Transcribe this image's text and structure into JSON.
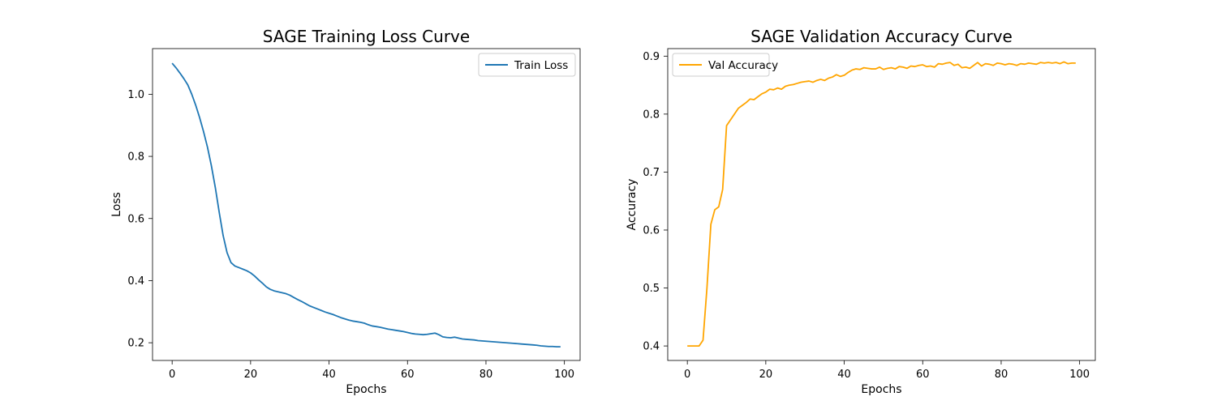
{
  "chart_data": [
    {
      "type": "line",
      "title": "SAGE Training Loss Curve",
      "xlabel": "Epochs",
      "ylabel": "Loss",
      "xlim": [
        -5,
        104
      ],
      "ylim": [
        0.143,
        1.147
      ],
      "xticks": [
        0,
        20,
        40,
        60,
        80,
        100
      ],
      "yticks": [
        0.2,
        0.4,
        0.6,
        0.8,
        1.0
      ],
      "xtick_labels": [
        "0",
        "20",
        "40",
        "60",
        "80",
        "100"
      ],
      "ytick_labels": [
        "0.2",
        "0.4",
        "0.6",
        "0.8",
        "1.0"
      ],
      "grid": false,
      "legend_position": "top-right",
      "series": [
        {
          "name": "Train Loss",
          "color": "#1f77b4",
          "x": [
            0,
            1,
            2,
            3,
            4,
            5,
            6,
            7,
            8,
            9,
            10,
            11,
            12,
            13,
            14,
            15,
            16,
            17,
            18,
            19,
            20,
            21,
            22,
            23,
            24,
            25,
            26,
            27,
            28,
            29,
            30,
            31,
            32,
            33,
            34,
            35,
            36,
            37,
            38,
            39,
            40,
            41,
            42,
            43,
            44,
            45,
            46,
            47,
            48,
            49,
            50,
            51,
            52,
            53,
            54,
            55,
            56,
            57,
            58,
            59,
            60,
            61,
            62,
            63,
            64,
            65,
            66,
            67,
            68,
            69,
            70,
            71,
            72,
            73,
            74,
            75,
            76,
            77,
            78,
            79,
            80,
            81,
            82,
            83,
            84,
            85,
            86,
            87,
            88,
            89,
            90,
            91,
            92,
            93,
            94,
            95,
            96,
            97,
            98,
            99
          ],
          "values": [
            1.1,
            1.085,
            1.068,
            1.05,
            1.03,
            1.0,
            0.965,
            0.925,
            0.88,
            0.83,
            0.77,
            0.7,
            0.62,
            0.545,
            0.49,
            0.458,
            0.447,
            0.442,
            0.437,
            0.432,
            0.425,
            0.415,
            0.403,
            0.392,
            0.38,
            0.372,
            0.367,
            0.364,
            0.361,
            0.358,
            0.353,
            0.346,
            0.339,
            0.333,
            0.326,
            0.319,
            0.314,
            0.309,
            0.304,
            0.299,
            0.295,
            0.291,
            0.286,
            0.281,
            0.277,
            0.273,
            0.27,
            0.268,
            0.266,
            0.263,
            0.258,
            0.254,
            0.252,
            0.25,
            0.247,
            0.244,
            0.242,
            0.24,
            0.238,
            0.236,
            0.233,
            0.23,
            0.228,
            0.227,
            0.226,
            0.227,
            0.229,
            0.231,
            0.226,
            0.219,
            0.217,
            0.216,
            0.218,
            0.215,
            0.212,
            0.211,
            0.21,
            0.209,
            0.207,
            0.206,
            0.205,
            0.204,
            0.203,
            0.202,
            0.201,
            0.2,
            0.199,
            0.198,
            0.197,
            0.196,
            0.195,
            0.194,
            0.193,
            0.192,
            0.19,
            0.189,
            0.188,
            0.188,
            0.187,
            0.187
          ]
        }
      ]
    },
    {
      "type": "line",
      "title": "SAGE Validation Accuracy Curve",
      "xlabel": "Epochs",
      "ylabel": "Accuracy",
      "xlim": [
        -5,
        104
      ],
      "ylim": [
        0.375,
        0.913
      ],
      "xticks": [
        0,
        20,
        40,
        60,
        80,
        100
      ],
      "yticks": [
        0.4,
        0.5,
        0.6,
        0.7,
        0.8,
        0.9
      ],
      "xtick_labels": [
        "0",
        "20",
        "40",
        "60",
        "80",
        "100"
      ],
      "ytick_labels": [
        "0.4",
        "0.5",
        "0.6",
        "0.7",
        "0.8",
        "0.9"
      ],
      "grid": false,
      "legend_position": "top-left",
      "series": [
        {
          "name": "Val Accuracy",
          "color": "#ffa500",
          "x": [
            0,
            1,
            2,
            3,
            4,
            5,
            6,
            7,
            8,
            9,
            10,
            11,
            12,
            13,
            14,
            15,
            16,
            17,
            18,
            19,
            20,
            21,
            22,
            23,
            24,
            25,
            26,
            27,
            28,
            29,
            30,
            31,
            32,
            33,
            34,
            35,
            36,
            37,
            38,
            39,
            40,
            41,
            42,
            43,
            44,
            45,
            46,
            47,
            48,
            49,
            50,
            51,
            52,
            53,
            54,
            55,
            56,
            57,
            58,
            59,
            60,
            61,
            62,
            63,
            64,
            65,
            66,
            67,
            68,
            69,
            70,
            71,
            72,
            73,
            74,
            75,
            76,
            77,
            78,
            79,
            80,
            81,
            82,
            83,
            84,
            85,
            86,
            87,
            88,
            89,
            90,
            91,
            92,
            93,
            94,
            95,
            96,
            97,
            98,
            99
          ],
          "values": [
            0.4,
            0.4,
            0.4,
            0.4,
            0.41,
            0.5,
            0.61,
            0.635,
            0.64,
            0.67,
            0.78,
            0.79,
            0.8,
            0.81,
            0.815,
            0.82,
            0.826,
            0.825,
            0.83,
            0.835,
            0.838,
            0.843,
            0.842,
            0.845,
            0.843,
            0.848,
            0.85,
            0.851,
            0.853,
            0.855,
            0.856,
            0.857,
            0.855,
            0.858,
            0.86,
            0.858,
            0.862,
            0.864,
            0.868,
            0.865,
            0.867,
            0.872,
            0.876,
            0.878,
            0.877,
            0.88,
            0.879,
            0.878,
            0.878,
            0.881,
            0.877,
            0.879,
            0.88,
            0.878,
            0.882,
            0.881,
            0.879,
            0.883,
            0.882,
            0.884,
            0.885,
            0.882,
            0.883,
            0.881,
            0.887,
            0.886,
            0.888,
            0.889,
            0.884,
            0.886,
            0.88,
            0.881,
            0.879,
            0.884,
            0.889,
            0.883,
            0.887,
            0.886,
            0.884,
            0.888,
            0.887,
            0.885,
            0.887,
            0.886,
            0.884,
            0.887,
            0.886,
            0.888,
            0.887,
            0.886,
            0.889,
            0.888,
            0.889,
            0.888,
            0.889,
            0.887,
            0.89,
            0.887,
            0.888,
            0.888
          ]
        }
      ]
    }
  ]
}
